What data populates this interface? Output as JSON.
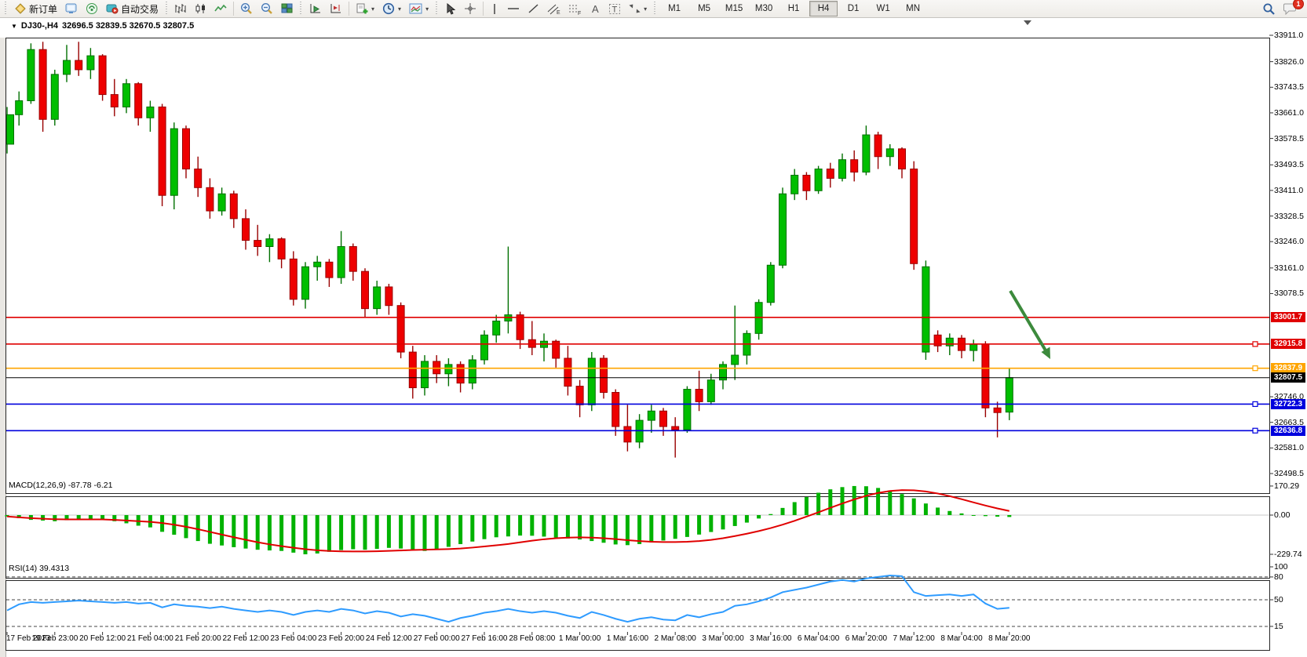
{
  "toolbar": {
    "new_order_label": "新订单",
    "auto_trading_label": "自动交易",
    "chat_badge": "1",
    "timeframes": {
      "items": [
        "M1",
        "M5",
        "M15",
        "M30",
        "H1",
        "H4",
        "D1",
        "W1",
        "MN"
      ],
      "active": "H4"
    }
  },
  "chart": {
    "title_symbol": "DJ30-,H4",
    "title_ohlc": "32696.5 32839.5 32670.5 32807.5"
  },
  "chart_data": {
    "type": "candlestick",
    "symbol": "DJ30-",
    "timeframe": "H4",
    "ohlc_current": {
      "open": 32696.5,
      "high": 32839.5,
      "low": 32670.5,
      "close": 32807.5
    },
    "price_axis_range": [
      32498.5,
      33911.0
    ],
    "price_axis_ticks": [
      "33911.0",
      "33826.0",
      "33743.5",
      "33661.0",
      "33578.5",
      "33493.5",
      "33411.0",
      "33328.5",
      "33246.0",
      "33161.0",
      "33078.5",
      "32746.0",
      "32663.5",
      "32581.0",
      "32498.5"
    ],
    "levels": [
      {
        "price": 33001.7,
        "label": "33001.7",
        "color": "#e00000",
        "marker": false
      },
      {
        "price": 32915.8,
        "label": "32915.8",
        "color": "#e00000",
        "marker": true
      },
      {
        "price": 32837.9,
        "label": "32837.9",
        "color": "#ffa500",
        "marker": true
      },
      {
        "price": 32807.5,
        "label": "32807.5",
        "color": "#000000",
        "marker": false
      },
      {
        "price": 32722.3,
        "label": "32722.3",
        "color": "#0000dd",
        "marker": true
      },
      {
        "price": 32636.8,
        "label": "32636.8",
        "color": "#0000dd",
        "marker": true
      }
    ],
    "colors": {
      "up": "#00be00",
      "up_edge": "#007000",
      "down": "#ee0000",
      "down_edge": "#990000",
      "macd_hist": "#00b200",
      "macd_signal": "#e00000",
      "rsi_line": "#2e9bff",
      "arrow": "#3c8a3c"
    },
    "candles": [
      [
        33560,
        33680,
        33530,
        33655
      ],
      [
        33655,
        33730,
        33620,
        33700
      ],
      [
        33700,
        33885,
        33690,
        33865
      ],
      [
        33865,
        33890,
        33600,
        33640
      ],
      [
        33640,
        33800,
        33620,
        33785
      ],
      [
        33785,
        33880,
        33760,
        33830
      ],
      [
        33830,
        33890,
        33780,
        33800
      ],
      [
        33800,
        33870,
        33770,
        33845
      ],
      [
        33845,
        33850,
        33700,
        33720
      ],
      [
        33720,
        33770,
        33650,
        33680
      ],
      [
        33680,
        33770,
        33660,
        33755
      ],
      [
        33755,
        33760,
        33620,
        33645
      ],
      [
        33645,
        33700,
        33600,
        33680
      ],
      [
        33680,
        33690,
        33360,
        33395
      ],
      [
        33395,
        33630,
        33350,
        33610
      ],
      [
        33610,
        33620,
        33450,
        33480
      ],
      [
        33480,
        33520,
        33390,
        33420
      ],
      [
        33420,
        33450,
        33320,
        33345
      ],
      [
        33345,
        33420,
        33330,
        33400
      ],
      [
        33400,
        33410,
        33290,
        33320
      ],
      [
        33320,
        33350,
        33220,
        33250
      ],
      [
        33250,
        33300,
        33200,
        33230
      ],
      [
        33230,
        33270,
        33180,
        33255
      ],
      [
        33255,
        33260,
        33160,
        33190
      ],
      [
        33190,
        33215,
        33040,
        33060
      ],
      [
        33060,
        33180,
        33030,
        33165
      ],
      [
        33165,
        33200,
        33120,
        33180
      ],
      [
        33180,
        33190,
        33100,
        33130
      ],
      [
        33130,
        33280,
        33110,
        33230
      ],
      [
        33230,
        33240,
        33120,
        33150
      ],
      [
        33150,
        33160,
        33000,
        33030
      ],
      [
        33030,
        33120,
        33010,
        33100
      ],
      [
        33100,
        33110,
        33010,
        33040
      ],
      [
        33040,
        33050,
        32870,
        32890
      ],
      [
        32890,
        32910,
        32740,
        32775
      ],
      [
        32775,
        32880,
        32750,
        32860
      ],
      [
        32860,
        32880,
        32790,
        32820
      ],
      [
        32820,
        32870,
        32780,
        32850
      ],
      [
        32850,
        32860,
        32760,
        32790
      ],
      [
        32790,
        32880,
        32770,
        32865
      ],
      [
        32865,
        32960,
        32850,
        32945
      ],
      [
        32945,
        33010,
        32920,
        32990
      ],
      [
        32990,
        33230,
        32950,
        33010
      ],
      [
        33010,
        33020,
        32900,
        32930
      ],
      [
        32930,
        32990,
        32880,
        32905
      ],
      [
        32905,
        32950,
        32860,
        32925
      ],
      [
        32925,
        32930,
        32840,
        32870
      ],
      [
        32870,
        32910,
        32750,
        32780
      ],
      [
        32780,
        32800,
        32680,
        32720
      ],
      [
        32720,
        32890,
        32700,
        32870
      ],
      [
        32870,
        32880,
        32740,
        32760
      ],
      [
        32760,
        32770,
        32620,
        32650
      ],
      [
        32650,
        32720,
        32570,
        32600
      ],
      [
        32600,
        32690,
        32580,
        32670
      ],
      [
        32670,
        32720,
        32630,
        32700
      ],
      [
        32700,
        32710,
        32620,
        32650
      ],
      [
        32650,
        32680,
        32550,
        32640
      ],
      [
        32640,
        32780,
        32630,
        32770
      ],
      [
        32770,
        32830,
        32700,
        32730
      ],
      [
        32730,
        32820,
        32720,
        32800
      ],
      [
        32800,
        32860,
        32770,
        32850
      ],
      [
        32850,
        33040,
        32800,
        32880
      ],
      [
        32880,
        32960,
        32850,
        32950
      ],
      [
        32950,
        33060,
        32930,
        33050
      ],
      [
        33050,
        33180,
        33040,
        33170
      ],
      [
        33170,
        33420,
        33160,
        33400
      ],
      [
        33400,
        33480,
        33380,
        33460
      ],
      [
        33460,
        33470,
        33380,
        33410
      ],
      [
        33410,
        33490,
        33400,
        33480
      ],
      [
        33480,
        33500,
        33420,
        33450
      ],
      [
        33450,
        33530,
        33440,
        33510
      ],
      [
        33510,
        33540,
        33440,
        33470
      ],
      [
        33470,
        33620,
        33460,
        33590
      ],
      [
        33590,
        33600,
        33480,
        33520
      ],
      [
        33520,
        33560,
        33490,
        33545
      ],
      [
        33545,
        33550,
        33450,
        33480
      ],
      [
        33480,
        33505,
        33155,
        33175
      ],
      [
        32890,
        33185,
        32865,
        33165
      ],
      [
        32945,
        32960,
        32890,
        32910
      ],
      [
        32910,
        32950,
        32880,
        32935
      ],
      [
        32935,
        32945,
        32870,
        32895
      ],
      [
        32895,
        32930,
        32860,
        32915
      ],
      [
        32915,
        32925,
        32680,
        32710
      ],
      [
        32710,
        32730,
        32615,
        32695
      ],
      [
        32696.5,
        32839.5,
        32670.5,
        32807.5
      ]
    ],
    "dates": [
      "17 Feb 2023",
      "19 Feb 23:00",
      "20 Feb 12:00",
      "21 Feb 04:00",
      "21 Feb 20:00",
      "22 Feb 12:00",
      "23 Feb 04:00",
      "23 Feb 20:00",
      "24 Feb 12:00",
      "27 Feb 00:00",
      "27 Feb 16:00",
      "28 Feb 08:00",
      "1 Mar 00:00",
      "1 Mar 16:00",
      "2 Mar 08:00",
      "3 Mar 00:00",
      "3 Mar 16:00",
      "6 Mar 04:00",
      "6 Mar 20:00",
      "7 Mar 12:00",
      "8 Mar 04:00",
      "8 Mar 20:00"
    ],
    "macd": {
      "label": "MACD(12,26,9) -87.78 -6.21",
      "axis": [
        "170.29",
        "0.00",
        "-229.74"
      ],
      "histogram": [
        -8,
        -18,
        -28,
        -32,
        -36,
        -30,
        -26,
        -22,
        -26,
        -36,
        -48,
        -62,
        -72,
        -98,
        -115,
        -135,
        -152,
        -168,
        -178,
        -188,
        -196,
        -203,
        -207,
        -210,
        -220,
        -229.74,
        -225,
        -215,
        -205,
        -200,
        -203,
        -198,
        -192,
        -196,
        -206,
        -210,
        -200,
        -186,
        -170,
        -155,
        -141,
        -130,
        -125,
        -120,
        -121,
        -126,
        -132,
        -137,
        -143,
        -152,
        -162,
        -172,
        -176,
        -170,
        -160,
        -149,
        -139,
        -128,
        -114,
        -99,
        -84,
        -64,
        -44,
        -20,
        6,
        42,
        76,
        106,
        131,
        151,
        164,
        170.29,
        169,
        159,
        144,
        123,
        98,
        68,
        44,
        24,
        10,
        0,
        -6,
        -9,
        -11
      ]
    },
    "rsi": {
      "label": "RSI(14) 39.4313",
      "axis": [
        "100",
        "80",
        "50",
        "15"
      ],
      "levels": [
        80,
        50,
        15
      ],
      "values": [
        36,
        44,
        47,
        46,
        47,
        48,
        49,
        48,
        47,
        46,
        47,
        45,
        46,
        40,
        44,
        42,
        41,
        39,
        41,
        38,
        36,
        34,
        36,
        34,
        30,
        34,
        36,
        34,
        38,
        36,
        32,
        35,
        33,
        28,
        31,
        29,
        25,
        21,
        26,
        29,
        33,
        35,
        38,
        35,
        33,
        35,
        33,
        29,
        26,
        34,
        30,
        25,
        21,
        25,
        27,
        24,
        23,
        30,
        27,
        31,
        34,
        42,
        44,
        48,
        53,
        60,
        63,
        66,
        70,
        74,
        76,
        74,
        78,
        80,
        82,
        81,
        60,
        55,
        56,
        57,
        55,
        57,
        45,
        38,
        39.4
      ]
    }
  }
}
